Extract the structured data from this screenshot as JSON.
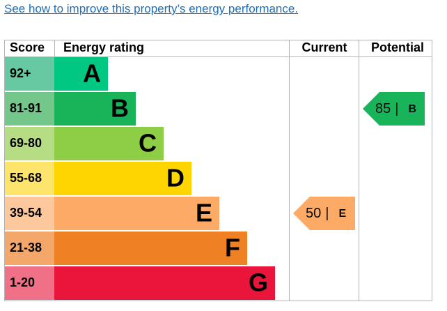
{
  "link": "See how to improve this property’s energy performance.",
  "table": {
    "headers": {
      "score": "Score",
      "rating": "Energy rating",
      "current": "Current",
      "potential": "Potential"
    },
    "bands": [
      {
        "range": "92+",
        "letter": "A",
        "color": "#00c781",
        "light": "#67c9a1"
      },
      {
        "range": "81-91",
        "letter": "B",
        "color": "#19b459",
        "light": "#73c78b"
      },
      {
        "range": "69-80",
        "letter": "C",
        "color": "#8dce46",
        "light": "#b6dd84"
      },
      {
        "range": "55-68",
        "letter": "D",
        "color": "#ffd500",
        "light": "#fde46b"
      },
      {
        "range": "39-54",
        "letter": "E",
        "color": "#fcaa65",
        "light": "#fdc99c"
      },
      {
        "range": "21-38",
        "letter": "F",
        "color": "#ef8023",
        "light": "#f4a76a"
      },
      {
        "range": "1-20",
        "letter": "G",
        "color": "#e9153b",
        "light": "#f07088"
      }
    ],
    "current": {
      "score": 50,
      "separator": "|",
      "band": "E"
    },
    "potential": {
      "score": 85,
      "separator": "|",
      "band": "B"
    }
  }
}
